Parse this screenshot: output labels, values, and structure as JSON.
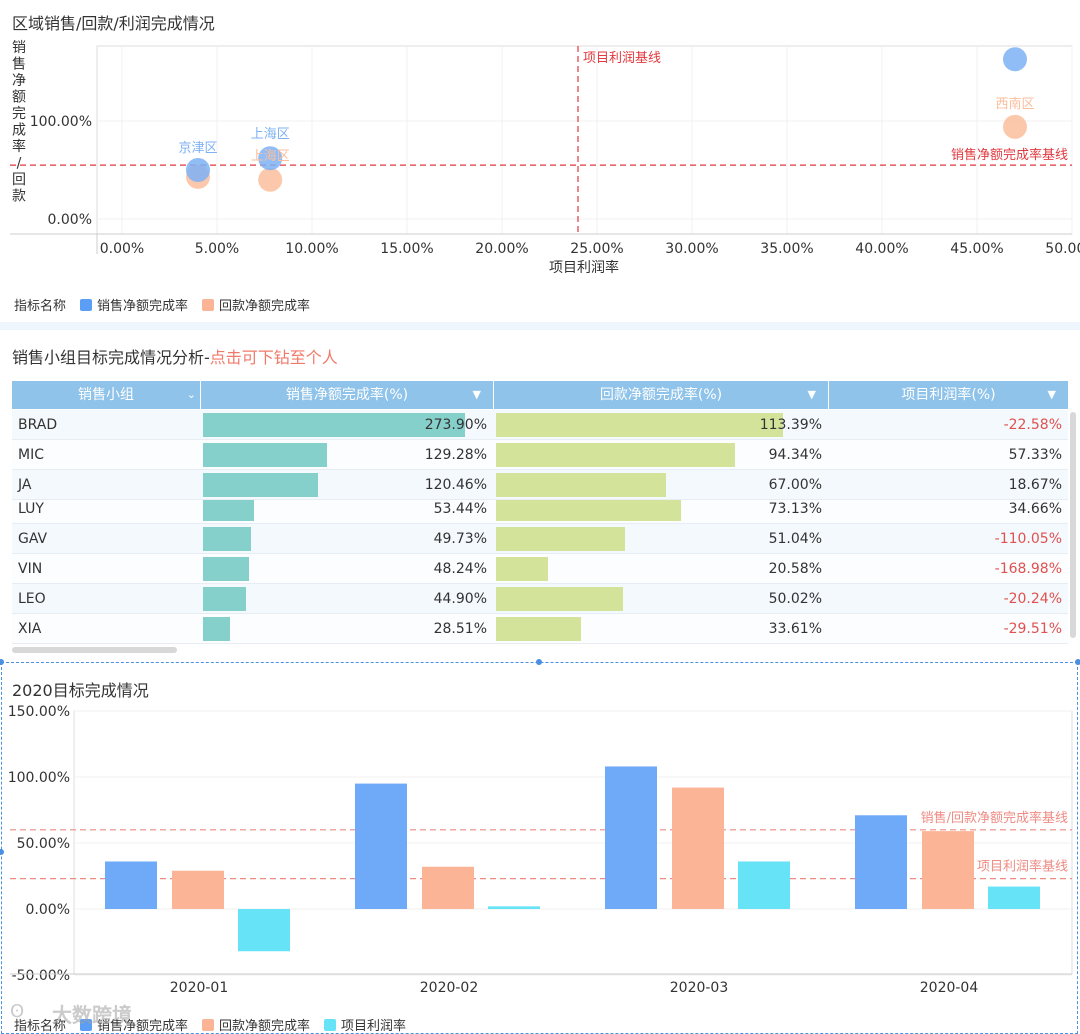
{
  "panel1": {
    "title": "区域销售/回款/利润完成情况",
    "ylabel": "销售净额完成率/回款净...",
    "xlabel": "项目利润率",
    "ref_x_label": "项目利润基线",
    "ref_y_label": "销售净额完成率基线",
    "ref_x_value": 0.24,
    "ref_y_value": 0.55,
    "yticks": [
      "0.00%",
      "100.00%"
    ],
    "ytick_values": [
      0.0,
      1.0
    ],
    "xticks": [
      "0.00%",
      "5.00%",
      "10.00%",
      "15.00%",
      "20.00%",
      "25.00%",
      "30.00%",
      "35.00%",
      "40.00%",
      "45.00%",
      "50.00%"
    ],
    "xtick_values": [
      0,
      0.05,
      0.1,
      0.15,
      0.2,
      0.25,
      0.3,
      0.35,
      0.4,
      0.45,
      0.5
    ],
    "points": [
      {
        "label": "京津区",
        "x": 0.04,
        "y_sales": 0.5,
        "y_refund": 0.43
      },
      {
        "label": "上海区",
        "x": 0.078,
        "y_sales": 0.62,
        "y_refund": 0.4
      },
      {
        "label": "西南区",
        "x": 0.47,
        "y_sales": 1.63,
        "y_refund": 0.94
      }
    ],
    "point_labels": [
      "京津区",
      "上海区",
      "上海区",
      "西南区"
    ],
    "legend_title": "指标名称",
    "legend": [
      "销售净额完成率",
      "回款净额完成率"
    ],
    "colors": {
      "sales": "#7eb2f4",
      "refund": "#fbbe9c",
      "ref": "#e0393e"
    }
  },
  "panel2": {
    "title_main": "销售小组目标完成情况分析-",
    "title_link": "点击可下钻至个人",
    "columns": [
      "销售小组",
      "销售净额完成率(%)",
      "回款净额完成率(%)",
      "项目利润率(%)"
    ],
    "rows": [
      {
        "name": "BRAD",
        "sales": "273.90%",
        "sales_v": 2.739,
        "refund": "113.39%",
        "refund_v": 1.1339,
        "profit": "-22.58%",
        "neg": true
      },
      {
        "name": "MIC",
        "sales": "129.28%",
        "sales_v": 1.2928,
        "refund": "94.34%",
        "refund_v": 0.9434,
        "profit": "57.33%",
        "neg": false
      },
      {
        "name": "JA",
        "sales": "120.46%",
        "sales_v": 1.2046,
        "refund": "67.00%",
        "refund_v": 0.67,
        "profit": "18.67%",
        "neg": false
      },
      {
        "name": "LUY",
        "sales": "53.44%",
        "sales_v": 0.5344,
        "refund": "73.13%",
        "refund_v": 0.7313,
        "profit": "34.66%",
        "neg": false
      },
      {
        "name": "GAV",
        "sales": "49.73%",
        "sales_v": 0.4973,
        "refund": "51.04%",
        "refund_v": 0.5104,
        "profit": "-110.05%",
        "neg": true
      },
      {
        "name": "VIN",
        "sales": "48.24%",
        "sales_v": 0.4824,
        "refund": "20.58%",
        "refund_v": 0.2058,
        "profit": "-168.98%",
        "neg": true
      },
      {
        "name": "LEO",
        "sales": "44.90%",
        "sales_v": 0.449,
        "refund": "50.02%",
        "refund_v": 0.5002,
        "profit": "-20.24%",
        "neg": true
      },
      {
        "name": "XIA",
        "sales": "28.51%",
        "sales_v": 0.2851,
        "refund": "33.61%",
        "refund_v": 0.3361,
        "profit": "-29.51%",
        "neg": true
      }
    ]
  },
  "panel3": {
    "title": "2020目标完成情况",
    "chart_data": {
      "type": "bar",
      "categories": [
        "2020-01",
        "2020-02",
        "2020-03",
        "2020-04"
      ],
      "series": [
        {
          "name": "销售净额完成率",
          "values": [
            0.36,
            0.95,
            1.08,
            0.71
          ]
        },
        {
          "name": "回款净额完成率",
          "values": [
            0.29,
            0.32,
            0.92,
            0.59
          ]
        },
        {
          "name": "项目利润率",
          "values": [
            -0.32,
            0.02,
            0.36,
            0.17
          ]
        }
      ],
      "yticks": [
        "150.00%",
        "100.00%",
        "50.00%",
        "0.00%",
        "-50.00%"
      ],
      "ytick_values": [
        1.5,
        1.0,
        0.5,
        0.0,
        -0.5
      ],
      "ylim": [
        -0.5,
        1.5
      ],
      "ref_lines": [
        {
          "label": "销售/回款净额完成率基线",
          "value": 0.6
        },
        {
          "label": "项目利润率基线",
          "value": 0.23
        }
      ],
      "colors": [
        "#6eaaf7",
        "#fbb496",
        "#66e3f7"
      ],
      "ref_color": "#ee8b83"
    },
    "legend_title": "指标名称",
    "legend": [
      "销售净额完成率",
      "回款净额完成率",
      "项目利润率"
    ],
    "watermark": "大数跨境"
  }
}
